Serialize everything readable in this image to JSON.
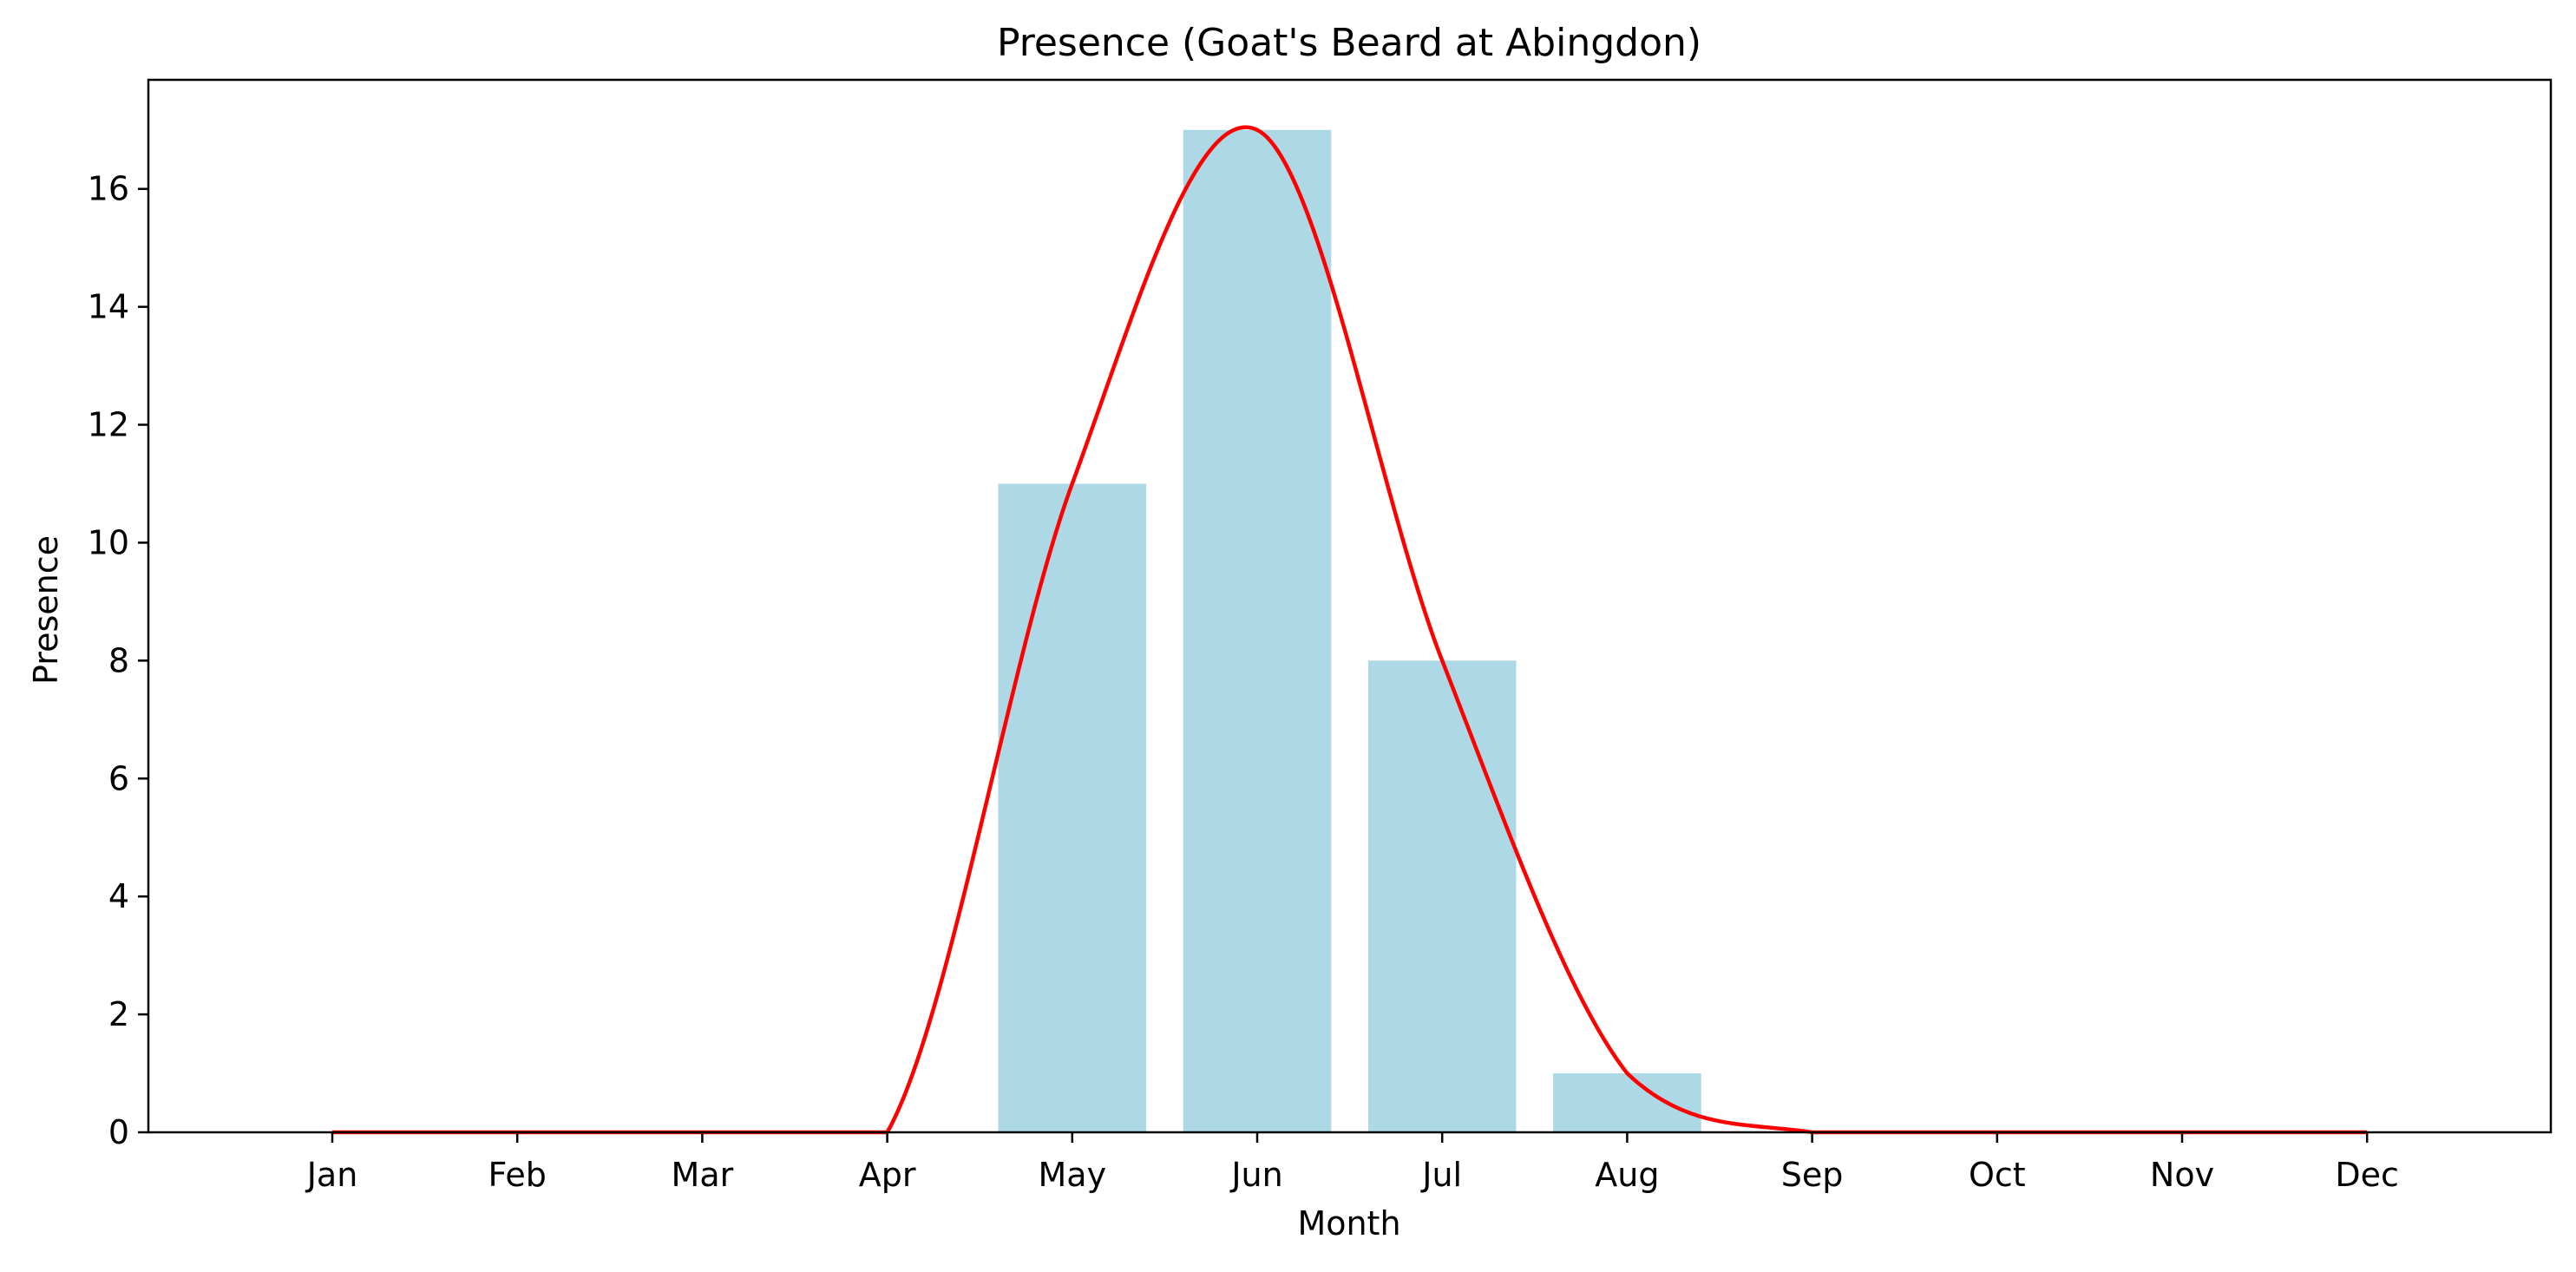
{
  "chart_data": {
    "type": "bar",
    "title": "Presence (Goat's Beard at Abingdon)",
    "xlabel": "Month",
    "ylabel": "Presence",
    "categories": [
      "Jan",
      "Feb",
      "Mar",
      "Apr",
      "May",
      "Jun",
      "Jul",
      "Aug",
      "Sep",
      "Oct",
      "Nov",
      "Dec"
    ],
    "values": [
      0,
      0,
      0,
      0,
      11,
      17,
      8,
      1,
      0,
      0,
      0,
      0
    ],
    "yticks": [
      0,
      2,
      4,
      6,
      8,
      10,
      12,
      14,
      16
    ],
    "ylim": [
      0,
      17.85
    ],
    "grid": false,
    "bar_color": "#add8e6",
    "line": {
      "type": "smoothed-line",
      "color": "#ff0000",
      "values": [
        0,
        0,
        0,
        0,
        11,
        17,
        8,
        1,
        0,
        0,
        0,
        0
      ]
    }
  }
}
